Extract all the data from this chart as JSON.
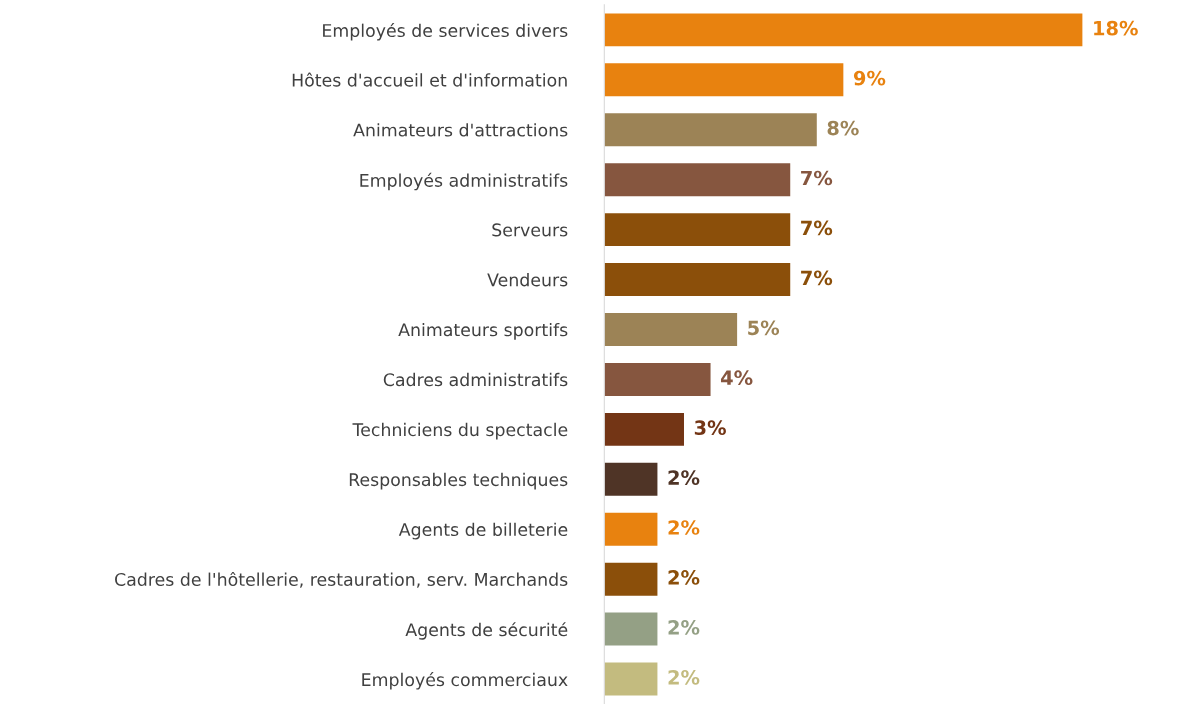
{
  "chart_data": {
    "type": "bar",
    "orientation": "horizontal",
    "data_labels": true,
    "categories": [
      "Employés de services divers",
      "Hôtes d'accueil et d'information",
      "Animateurs d'attractions",
      "Employés administratifs",
      "Serveurs",
      "Vendeurs",
      "Animateurs sportifs",
      "Cadres administratifs",
      "Techniciens du spectacle",
      "Responsables techniques",
      "Agents de billeterie",
      "Cadres de l'hôtellerie, restauration, serv. Marchands",
      "Agents de sécurité",
      "Employés commerciaux"
    ],
    "values": [
      18,
      9,
      8,
      7,
      7,
      7,
      5,
      4,
      3,
      2,
      2,
      2,
      2,
      2
    ],
    "value_labels": [
      "18%",
      "9%",
      "8%",
      "7%",
      "7%",
      "7%",
      "5%",
      "4%",
      "3%",
      "2%",
      "2%",
      "2%",
      "2%",
      "2%"
    ],
    "colors": [
      "#e8820f",
      "#e8820f",
      "#9c8356",
      "#86563f",
      "#8b4f0a",
      "#8b4f0a",
      "#9c8356",
      "#86563f",
      "#733515",
      "#4f3426",
      "#e8820f",
      "#8b4f0a",
      "#94a085",
      "#c3bb7f"
    ],
    "grid": false,
    "legend": false
  }
}
